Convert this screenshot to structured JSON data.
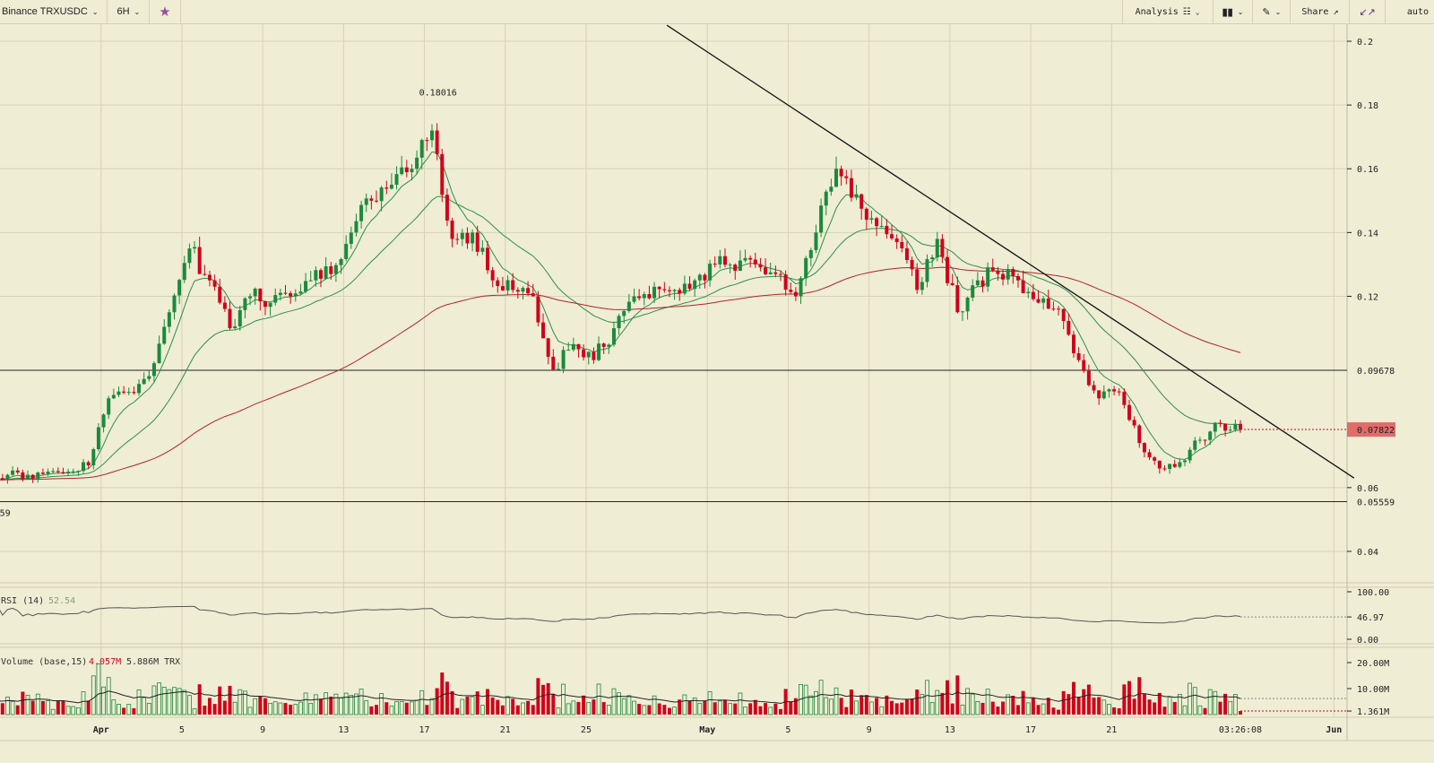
{
  "toolbar": {
    "symbol": "Binance TRXUSDC",
    "interval": "6H",
    "favorite_icon": "star-icon",
    "analysis": "Analysis",
    "share": "Share",
    "scale_mode": "auto"
  },
  "colors": {
    "background": "#efedd4",
    "up": "#1b8a3c",
    "down": "#d0021b",
    "ma_short": "#2f8f4a",
    "ma_long": "#b0242a",
    "grid": "#d6d2b6"
  },
  "indicators": {
    "rsi_label": "RSI (14)",
    "rsi_value": "52.54",
    "volume_label": "Volume (base,15)",
    "volume_value": "4.057M",
    "volume_ma_value": "5.886M TRX"
  },
  "chart_data": {
    "type": "candlestick",
    "interval": "6H",
    "price_axis": {
      "ticks": [
        "0.2",
        "0.18",
        "0.16",
        "0.14",
        "0.12",
        "0.06",
        "0.04"
      ],
      "range": [
        0.036,
        0.205
      ]
    },
    "current_price": "0.07822",
    "annotations": {
      "high": "0.18016",
      "low": "0.05559"
    },
    "horizontal_levels": [
      "0.09678",
      "0.05559"
    ],
    "trendline": [
      {
        "date": "04-29",
        "price": 0.205
      },
      {
        "date": "06-02",
        "price": 0.063
      }
    ],
    "x_ticks": [
      {
        "label": "Apr",
        "date": "04-01"
      },
      {
        "label": "5",
        "date": "04-05"
      },
      {
        "label": "9",
        "date": "04-09"
      },
      {
        "label": "13",
        "date": "04-13"
      },
      {
        "label": "17",
        "date": "04-17"
      },
      {
        "label": "21",
        "date": "04-21"
      },
      {
        "label": "25",
        "date": "04-25"
      },
      {
        "label": "May",
        "date": "05-01"
      },
      {
        "label": "5",
        "date": "05-05"
      },
      {
        "label": "9",
        "date": "05-09"
      },
      {
        "label": "13",
        "date": "05-13"
      },
      {
        "label": "17",
        "date": "05-17"
      },
      {
        "label": "21",
        "date": "05-21"
      },
      {
        "label": "Jun",
        "date": "06-01"
      }
    ],
    "current_time": "03:26:08",
    "rsi_axis": [
      "100.00",
      "46.97",
      "0.00"
    ],
    "volume_axis": [
      "20.00M",
      "10.00M",
      "1.361M"
    ],
    "daily_close": [
      {
        "date": "03-27",
        "close": 0.064
      },
      {
        "date": "03-28",
        "close": 0.064
      },
      {
        "date": "03-29",
        "close": 0.065
      },
      {
        "date": "03-30",
        "close": 0.065
      },
      {
        "date": "03-31",
        "close": 0.067
      },
      {
        "date": "04-01",
        "close": 0.088
      },
      {
        "date": "04-02",
        "close": 0.09
      },
      {
        "date": "04-03",
        "close": 0.095
      },
      {
        "date": "04-04",
        "close": 0.115
      },
      {
        "date": "04-05",
        "close": 0.135
      },
      {
        "date": "04-06",
        "close": 0.125
      },
      {
        "date": "04-07",
        "close": 0.11
      },
      {
        "date": "04-08",
        "close": 0.12
      },
      {
        "date": "04-09",
        "close": 0.118
      },
      {
        "date": "04-10",
        "close": 0.12
      },
      {
        "date": "04-11",
        "close": 0.125
      },
      {
        "date": "04-12",
        "close": 0.127
      },
      {
        "date": "04-13",
        "close": 0.14
      },
      {
        "date": "04-14",
        "close": 0.15
      },
      {
        "date": "04-15",
        "close": 0.155
      },
      {
        "date": "04-16",
        "close": 0.16
      },
      {
        "date": "04-17",
        "close": 0.172
      },
      {
        "date": "04-18",
        "close": 0.138
      },
      {
        "date": "04-19",
        "close": 0.14
      },
      {
        "date": "04-20",
        "close": 0.125
      },
      {
        "date": "04-21",
        "close": 0.122
      },
      {
        "date": "04-22",
        "close": 0.12
      },
      {
        "date": "04-23",
        "close": 0.097
      },
      {
        "date": "04-24",
        "close": 0.105
      },
      {
        "date": "04-25",
        "close": 0.1
      },
      {
        "date": "04-26",
        "close": 0.11
      },
      {
        "date": "04-27",
        "close": 0.12
      },
      {
        "date": "04-28",
        "close": 0.123
      },
      {
        "date": "04-29",
        "close": 0.122
      },
      {
        "date": "04-30",
        "close": 0.125
      },
      {
        "date": "05-01",
        "close": 0.13
      },
      {
        "date": "05-02",
        "close": 0.128
      },
      {
        "date": "05-03",
        "close": 0.13
      },
      {
        "date": "05-04",
        "close": 0.127
      },
      {
        "date": "05-05",
        "close": 0.12
      },
      {
        "date": "05-06",
        "close": 0.14
      },
      {
        "date": "05-07",
        "close": 0.16
      },
      {
        "date": "05-08",
        "close": 0.152
      },
      {
        "date": "05-09",
        "close": 0.142
      },
      {
        "date": "05-10",
        "close": 0.137
      },
      {
        "date": "05-11",
        "close": 0.122
      },
      {
        "date": "05-12",
        "close": 0.138
      },
      {
        "date": "05-13",
        "close": 0.115
      },
      {
        "date": "05-14",
        "close": 0.125
      },
      {
        "date": "05-15",
        "close": 0.127
      },
      {
        "date": "05-16",
        "close": 0.125
      },
      {
        "date": "05-17",
        "close": 0.118
      },
      {
        "date": "05-18",
        "close": 0.116
      },
      {
        "date": "05-19",
        "close": 0.1
      },
      {
        "date": "05-20",
        "close": 0.088
      },
      {
        "date": "05-21",
        "close": 0.09
      },
      {
        "date": "05-22",
        "close": 0.074
      },
      {
        "date": "05-23",
        "close": 0.066
      },
      {
        "date": "05-24",
        "close": 0.068
      },
      {
        "date": "05-25",
        "close": 0.075
      },
      {
        "date": "05-26",
        "close": 0.08
      },
      {
        "date": "05-27",
        "close": 0.078
      }
    ]
  }
}
